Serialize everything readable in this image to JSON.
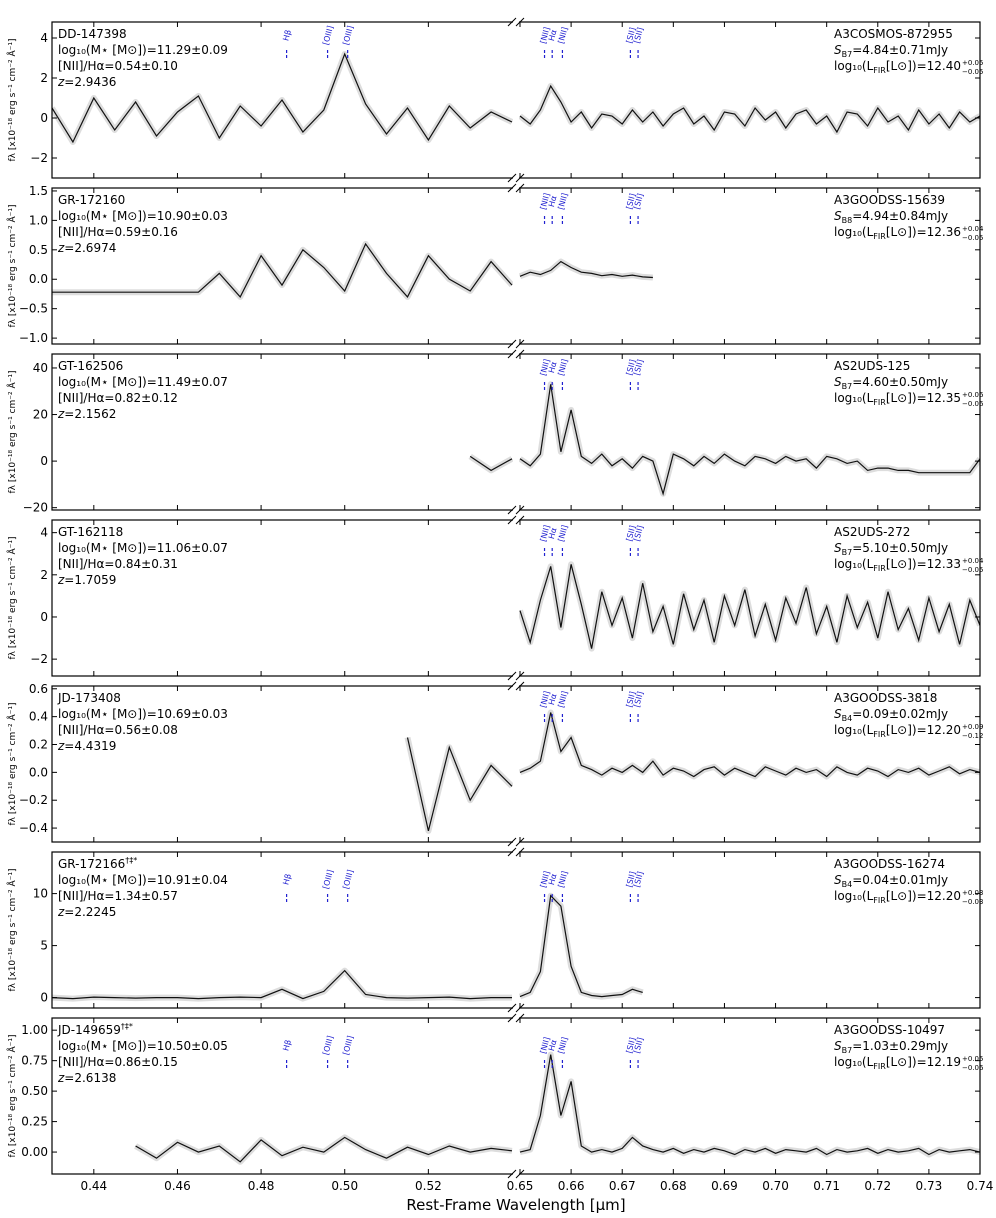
{
  "chart_data": {
    "type": "line",
    "xlabel": "Rest-Frame Wavelength [μm]",
    "ylabel": "fλ [x10⁻¹⁸ erg s⁻¹ cm⁻² Å⁻¹]",
    "xlim": [
      0.43,
      0.74
    ],
    "xbreak": [
      0.54,
      0.65
    ],
    "xticks": [
      0.44,
      0.46,
      0.48,
      {
        "value": 0.5,
        "label": "0.50"
      },
      0.52,
      0.65,
      0.66,
      0.67,
      0.68,
      0.69,
      {
        "value": 0.7,
        "label": "0.70"
      },
      0.71,
      0.72,
      0.73,
      0.74
    ],
    "mass_label": "log₁₀(M⋆ [M⊙])=",
    "ratio_label": "[NII]/Hα=",
    "z_label": "z=",
    "flux_symbol": "S",
    "lfir_prefix": "log₁₀(L",
    "lfir_sub": "FIR",
    "lfir_suffix": "[L⊙])=",
    "color": "#111111",
    "error_color": "#dddddd",
    "line_color": "#2020d0",
    "lines": [
      {
        "label": "Hβ",
        "x": 0.4861
      },
      {
        "label": "[OIII]",
        "x": 0.4959
      },
      {
        "label": "[OIII]",
        "x": 0.5007
      },
      {
        "label": "[NII]",
        "x": 0.6548
      },
      {
        "label": "Hα",
        "x": 0.6563
      },
      {
        "label": "[NII]",
        "x": 0.6583
      },
      {
        "label": "[SII]",
        "x": 0.6716
      },
      {
        "label": "[SII]",
        "x": 0.6731
      }
    ],
    "x": [
      0.43,
      0.435,
      0.44,
      0.445,
      0.45,
      0.455,
      0.46,
      0.465,
      0.47,
      0.475,
      0.48,
      0.485,
      0.49,
      0.495,
      0.5,
      0.505,
      0.51,
      0.515,
      0.52,
      0.525,
      0.53,
      0.535,
      0.54,
      0.65,
      0.652,
      0.654,
      0.656,
      0.658,
      0.66,
      0.662,
      0.664,
      0.666,
      0.668,
      0.67,
      0.672,
      0.674,
      0.676,
      0.678,
      0.68,
      0.682,
      0.684,
      0.686,
      0.688,
      0.69,
      0.692,
      0.694,
      0.696,
      0.698,
      0.7,
      0.702,
      0.704,
      0.706,
      0.708,
      0.71,
      0.712,
      0.714,
      0.716,
      0.718,
      0.72,
      0.722,
      0.724,
      0.726,
      0.728,
      0.73,
      0.732,
      0.734,
      0.736,
      0.738,
      0.74
    ],
    "series": [
      {
        "name": "DD-147398",
        "mass": "11.29±0.09",
        "ratio": "0.54±0.10",
        "z": "2.9436",
        "source": "A3COSMOS-872955",
        "band": "B7",
        "flux": "=4.84±0.71mJy",
        "lfir": "12.40",
        "lfir_up": "+0.05",
        "lfir_down": "−0.05",
        "line_labels": "all",
        "ylim": [
          -3,
          4.8
        ],
        "yticks": [
          {
            "value": -2,
            "label": "−2"
          },
          0,
          2,
          4
        ],
        "values": [
          0.5,
          -1.2,
          1.0,
          -0.6,
          0.8,
          -0.9,
          0.3,
          1.1,
          -1.0,
          0.6,
          -0.4,
          0.9,
          -0.7,
          0.4,
          3.2,
          0.7,
          -0.8,
          0.5,
          -1.1,
          0.6,
          -0.5,
          0.3,
          -0.2,
          0.1,
          -0.3,
          0.4,
          1.6,
          0.8,
          -0.2,
          0.3,
          -0.5,
          0.2,
          0.1,
          -0.3,
          0.4,
          -0.2,
          0.3,
          -0.4,
          0.2,
          0.5,
          -0.3,
          0.1,
          -0.6,
          0.3,
          0.2,
          -0.4,
          0.5,
          -0.1,
          0.3,
          -0.5,
          0.2,
          0.4,
          -0.3,
          0.1,
          -0.7,
          0.3,
          0.2,
          -0.4,
          0.5,
          -0.2,
          0.1,
          -0.6,
          0.4,
          -0.3,
          0.2,
          -0.5,
          0.3,
          -0.2,
          0.1
        ]
      },
      {
        "name": "GR-172160",
        "mass": "10.90±0.03",
        "ratio": "0.59±0.16",
        "z": "2.6974",
        "source": "A3GOODSS-15639",
        "band": "B8",
        "flux": "=4.94±0.84mJy",
        "lfir": "12.36",
        "lfir_up": "+0.04",
        "lfir_down": "−0.05",
        "line_labels": "red",
        "ylim": [
          -1.1,
          1.55
        ],
        "yticks": [
          {
            "value": -1,
            "label": "−1.0"
          },
          {
            "value": -0.5,
            "label": "−0.5"
          },
          {
            "value": 0,
            "label": "0.0"
          },
          0.5,
          {
            "value": 1,
            "label": "1.0"
          },
          1.5
        ],
        "values": [
          -0.22,
          -0.22,
          -0.22,
          -0.22,
          -0.22,
          -0.22,
          -0.22,
          -0.22,
          0.1,
          -0.3,
          0.4,
          -0.1,
          0.5,
          0.2,
          -0.2,
          0.6,
          0.1,
          -0.3,
          0.4,
          0.0,
          -0.2,
          0.3,
          -0.1,
          0.05,
          0.12,
          0.08,
          0.15,
          0.3,
          0.2,
          0.12,
          0.1,
          0.06,
          0.08,
          0.05,
          0.07,
          0.04,
          0.03,
          null,
          null,
          null,
          null,
          null,
          null,
          null,
          null,
          null,
          null,
          null,
          null,
          null,
          null,
          null,
          null,
          null,
          null,
          null,
          null,
          null,
          null,
          null,
          null,
          null,
          null,
          null,
          null,
          null,
          null,
          null,
          null
        ]
      },
      {
        "name": "GT-162506",
        "mass": "11.49±0.07",
        "ratio": "0.82±0.12",
        "z": "2.1562",
        "source": "AS2UDS-125",
        "band": "B7",
        "flux": "=4.60±0.50mJy",
        "lfir": "12.35",
        "lfir_up": "+0.06",
        "lfir_down": "−0.06",
        "line_labels": "red",
        "ylim": [
          -21,
          46
        ],
        "yticks": [
          {
            "value": -20,
            "label": "−20"
          },
          0,
          20,
          40
        ],
        "values": [
          null,
          null,
          null,
          null,
          null,
          null,
          null,
          null,
          null,
          null,
          null,
          null,
          null,
          null,
          null,
          null,
          null,
          null,
          null,
          null,
          2,
          -4,
          1,
          1,
          -2,
          3,
          33,
          4,
          22,
          2,
          -1,
          3,
          -2,
          1,
          -3,
          2,
          0,
          -14,
          3,
          1,
          -2,
          2,
          -1,
          3,
          0,
          -2,
          2,
          1,
          -1,
          2,
          0,
          1,
          -3,
          2,
          1,
          -1,
          0,
          -4,
          -3,
          -3,
          -4,
          -4,
          -5,
          -5,
          -5,
          -5,
          -5,
          -5,
          1
        ]
      },
      {
        "name": "GT-162118",
        "mass": "11.06±0.07",
        "ratio": "0.84±0.31",
        "z": "1.7059",
        "source": "AS2UDS-272",
        "band": "B7",
        "flux": "=5.10±0.50mJy",
        "lfir": "12.33",
        "lfir_up": "+0.04",
        "lfir_down": "−0.05",
        "line_labels": "red",
        "ylim": [
          -2.8,
          4.6
        ],
        "yticks": [
          {
            "value": -2,
            "label": "−2"
          },
          0,
          2,
          4
        ],
        "values": [
          null,
          null,
          null,
          null,
          null,
          null,
          null,
          null,
          null,
          null,
          null,
          null,
          null,
          null,
          null,
          null,
          null,
          null,
          null,
          null,
          null,
          null,
          null,
          0.3,
          -1.2,
          0.8,
          2.4,
          -0.5,
          2.5,
          0.6,
          -1.5,
          1.2,
          -0.4,
          0.9,
          -1.0,
          1.6,
          -0.7,
          0.5,
          -1.3,
          1.1,
          -0.6,
          0.8,
          -1.2,
          1.0,
          -0.4,
          1.3,
          -0.9,
          0.6,
          -1.1,
          0.9,
          -0.3,
          1.4,
          -0.8,
          0.5,
          -1.2,
          1.0,
          -0.5,
          0.7,
          -1.0,
          1.2,
          -0.6,
          0.4,
          -1.1,
          0.9,
          -0.7,
          0.6,
          -1.3,
          0.8,
          -0.4
        ]
      },
      {
        "name": "JD-173408",
        "mass": "10.69±0.03",
        "ratio": "0.56±0.08",
        "z": "4.4319",
        "source": "A3GOODSS-3818",
        "band": "B4",
        "flux": "=0.09±0.02mJy",
        "lfir": "12.20",
        "lfir_up": "+0.09",
        "lfir_down": "−0.12",
        "line_labels": "red",
        "ylim": [
          -0.5,
          0.62
        ],
        "yticks": [
          {
            "value": -0.4,
            "label": "−0.4"
          },
          {
            "value": -0.2,
            "label": "−0.2"
          },
          {
            "value": 0,
            "label": "0.0"
          },
          0.2,
          0.4,
          0.6
        ],
        "values": [
          null,
          null,
          null,
          null,
          null,
          null,
          null,
          null,
          null,
          null,
          null,
          null,
          null,
          null,
          null,
          null,
          null,
          0.25,
          -0.42,
          0.18,
          -0.2,
          0.05,
          -0.1,
          0.0,
          0.03,
          0.08,
          0.43,
          0.15,
          0.25,
          0.05,
          0.02,
          -0.02,
          0.03,
          0.0,
          0.05,
          0.0,
          0.08,
          -0.02,
          0.03,
          0.01,
          -0.03,
          0.02,
          0.04,
          -0.02,
          0.03,
          0.0,
          -0.03,
          0.04,
          0.01,
          -0.02,
          0.03,
          0.0,
          0.02,
          -0.03,
          0.04,
          0.0,
          -0.02,
          0.03,
          0.01,
          -0.03,
          0.02,
          0.0,
          0.03,
          -0.02,
          0.01,
          0.04,
          -0.01,
          0.02,
          0.0
        ]
      },
      {
        "name": "GR-172166",
        "name_sup": "†‡*",
        "mass": "10.91±0.04",
        "ratio": "1.34±0.57",
        "z": "2.2245",
        "source": "A3GOODSS-16274",
        "band": "B4",
        "flux": "=0.04±0.01mJy",
        "lfir": "12.20",
        "lfir_up": "+0.03",
        "lfir_down": "−0.03",
        "line_labels": "all",
        "ylim": [
          -1,
          14
        ],
        "yticks": [
          0,
          5,
          10
        ],
        "values": [
          0.0,
          -0.1,
          0.05,
          0.0,
          -0.05,
          0.0,
          0.0,
          -0.1,
          0.0,
          0.05,
          0.0,
          0.8,
          -0.1,
          0.6,
          2.6,
          0.3,
          0.0,
          -0.05,
          0.0,
          0.05,
          -0.1,
          0.0,
          0.0,
          0.1,
          0.5,
          2.5,
          9.8,
          8.8,
          3.0,
          0.5,
          0.2,
          0.1,
          0.2,
          0.3,
          0.8,
          0.5,
          null,
          null,
          null,
          null,
          null,
          null,
          null,
          null,
          null,
          null,
          null,
          null,
          null,
          null,
          null,
          null,
          null,
          null,
          null,
          null,
          null,
          null,
          null,
          null,
          null,
          null,
          null,
          null,
          null,
          null,
          null,
          null,
          null
        ]
      },
      {
        "name": "JD-149659",
        "name_sup": "†‡*",
        "mass": "10.50±0.05",
        "ratio": "0.86±0.15",
        "z": "2.6138",
        "source": "A3GOODSS-10497",
        "band": "B7",
        "flux": "=1.03±0.29mJy",
        "lfir": "12.19",
        "lfir_up": "+0.05",
        "lfir_down": "−0.06",
        "line_labels": "all",
        "ylim": [
          -0.18,
          1.1
        ],
        "yticks": [
          {
            "value": 0,
            "label": "0.00"
          },
          0.25,
          {
            "value": 0.5,
            "label": "0.50"
          },
          0.75,
          {
            "value": 1,
            "label": "1.00"
          }
        ],
        "values": [
          null,
          null,
          null,
          null,
          0.05,
          -0.05,
          0.08,
          0.0,
          0.05,
          -0.08,
          0.1,
          -0.03,
          0.04,
          0.0,
          0.12,
          0.02,
          -0.05,
          0.04,
          -0.02,
          0.05,
          0.0,
          0.03,
          0.01,
          0.0,
          0.02,
          0.3,
          0.8,
          0.3,
          0.58,
          0.05,
          0.0,
          0.02,
          0.0,
          0.03,
          0.12,
          0.05,
          0.02,
          0.0,
          0.03,
          -0.01,
          0.02,
          0.0,
          0.03,
          0.01,
          -0.02,
          0.02,
          0.0,
          0.03,
          -0.01,
          0.02,
          0.01,
          0.0,
          0.03,
          -0.02,
          0.02,
          0.0,
          0.01,
          0.03,
          -0.01,
          0.02,
          0.0,
          0.01,
          0.03,
          -0.02,
          0.02,
          0.0,
          0.01,
          0.02,
          0.0
        ]
      }
    ]
  }
}
